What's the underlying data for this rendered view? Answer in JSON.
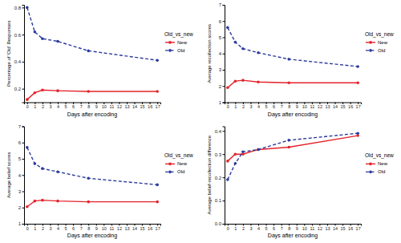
{
  "chart_data": [
    {
      "type": "line",
      "xlabel": "Days after encoding",
      "ylabel": "Percentage of 'Old' Responses",
      "legend_title": "Old_vs_new",
      "legend": "right",
      "x": [
        0,
        1,
        2,
        4,
        8,
        17
      ],
      "series": [
        {
          "name": "New",
          "color": "#e3232b",
          "line_style": "solid",
          "marker": "circle",
          "values": [
            0.12,
            0.17,
            0.19,
            0.185,
            0.18,
            0.18
          ]
        },
        {
          "name": "Old",
          "color": "#2b3a9c",
          "line_style": "dashed",
          "marker": "circle",
          "values": [
            0.8,
            0.62,
            0.57,
            0.55,
            0.48,
            0.41
          ]
        }
      ],
      "xlim": [
        -0.4,
        17.4
      ],
      "xticks": [
        0,
        1,
        2,
        3,
        4,
        5,
        6,
        7,
        8,
        9,
        10,
        11,
        12,
        13,
        14,
        15,
        16,
        17
      ],
      "ylim": [
        0.1,
        0.82
      ],
      "yticks": [
        0.2,
        0.4,
        0.6,
        0.8
      ]
    },
    {
      "type": "line",
      "xlabel": "Days after encoding",
      "ylabel": "Average recollection scores",
      "legend_title": "Old_vs_new",
      "legend": "right",
      "x": [
        0,
        1,
        2,
        4,
        8,
        17
      ],
      "series": [
        {
          "name": "New",
          "color": "#e3232b",
          "line_style": "solid",
          "marker": "circle",
          "values": [
            1.9,
            2.3,
            2.35,
            2.25,
            2.2,
            2.2
          ]
        },
        {
          "name": "Old",
          "color": "#2b3a9c",
          "line_style": "dashed",
          "marker": "circle",
          "values": [
            5.6,
            4.7,
            4.3,
            4.05,
            3.65,
            3.2
          ]
        }
      ],
      "xlim": [
        -0.4,
        17.4
      ],
      "xticks": [
        0,
        1,
        2,
        3,
        4,
        5,
        6,
        7,
        8,
        9,
        10,
        11,
        12,
        13,
        14,
        15,
        16,
        17
      ],
      "ylim": [
        1,
        7
      ],
      "yticks": [
        1,
        2,
        3,
        4,
        5,
        6,
        7
      ]
    },
    {
      "type": "line",
      "xlabel": "Days after encoding",
      "ylabel": "Average belief scores",
      "legend_title": "Old_vs_new",
      "legend": "right",
      "x": [
        0,
        1,
        2,
        4,
        8,
        17
      ],
      "series": [
        {
          "name": "New",
          "color": "#e3232b",
          "line_style": "solid",
          "marker": "circle",
          "values": [
            2.05,
            2.4,
            2.45,
            2.4,
            2.35,
            2.35
          ]
        },
        {
          "name": "Old",
          "color": "#2b3a9c",
          "line_style": "dashed",
          "marker": "circle",
          "values": [
            5.7,
            4.7,
            4.4,
            4.2,
            3.8,
            3.4
          ]
        }
      ],
      "xlim": [
        -0.4,
        17.4
      ],
      "xticks": [
        0,
        1,
        2,
        3,
        4,
        5,
        6,
        7,
        8,
        9,
        10,
        11,
        12,
        13,
        14,
        15,
        16,
        17
      ],
      "ylim": [
        1,
        7
      ],
      "yticks": [
        1,
        2,
        3,
        4,
        5,
        6,
        7
      ]
    },
    {
      "type": "line",
      "xlabel": "Days after encoding",
      "ylabel": "Average belief-recollection difference",
      "legend_title": "Old_vs_new",
      "legend": "right",
      "x": [
        0,
        1,
        2,
        4,
        8,
        17
      ],
      "series": [
        {
          "name": "New",
          "color": "#e3232b",
          "line_style": "solid",
          "marker": "circle",
          "values": [
            0.27,
            0.3,
            0.3,
            0.32,
            0.33,
            0.38
          ]
        },
        {
          "name": "Old",
          "color": "#2b3a9c",
          "line_style": "dashed",
          "marker": "circle",
          "values": [
            0.19,
            0.26,
            0.31,
            0.32,
            0.36,
            0.39
          ]
        }
      ],
      "xlim": [
        -0.4,
        17.4
      ],
      "xticks": [
        0,
        1,
        2,
        3,
        4,
        5,
        6,
        7,
        8,
        9,
        10,
        11,
        12,
        13,
        14,
        15,
        16,
        17
      ],
      "ylim": [
        0,
        0.42
      ],
      "yticks": [
        {
          "value": 0,
          "label": "0.0"
        },
        0.1,
        0.2,
        0.3,
        0.4
      ]
    }
  ]
}
